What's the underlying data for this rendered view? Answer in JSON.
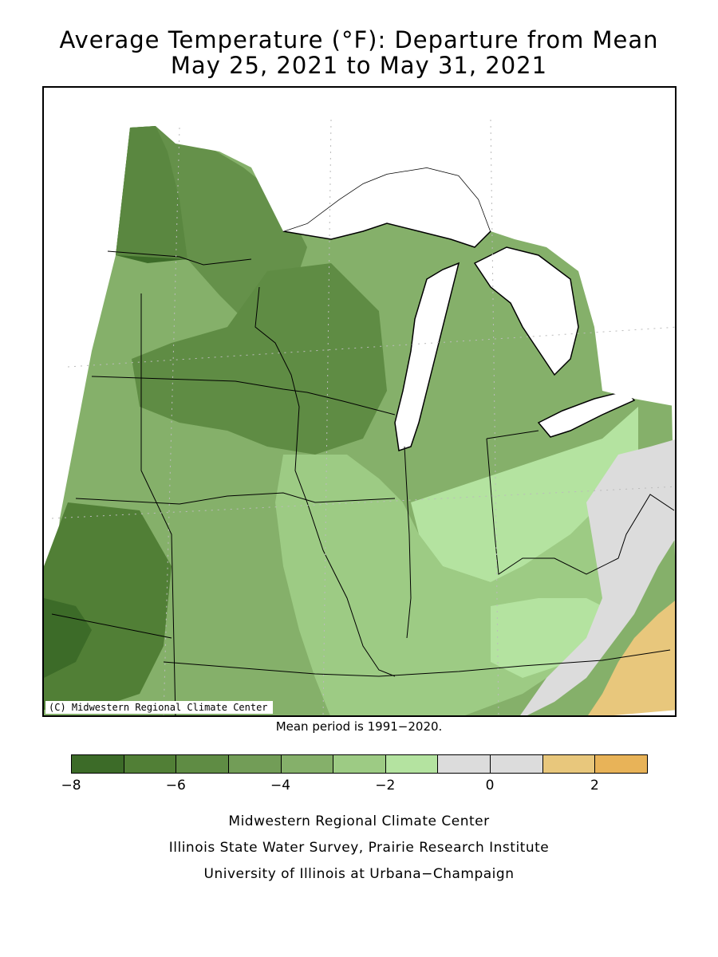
{
  "title": {
    "line1": "Average Temperature (°F): Departure from Mean",
    "line2": "May 25, 2021 to May 31, 2021"
  },
  "map": {
    "copyright": "(C) Midwestern Regional Climate Center",
    "mean_period": "Mean period is 1991−2020."
  },
  "legend": {
    "colors": [
      "#3c6b28",
      "#517f36",
      "#5f8c44",
      "#729d57",
      "#85b06a",
      "#9dcb84",
      "#b4e3a0",
      "#dcdcdc",
      "#dcdcdc",
      "#e8c77c",
      "#e8b358"
    ],
    "tick_labels": [
      "−8",
      "−6",
      "−4",
      "−2",
      "0",
      "2"
    ]
  },
  "credits": {
    "line1": "Midwestern Regional Climate Center",
    "line2": "Illinois State Water Survey, Prairie Research Institute",
    "line3": "University of Illinois at Urbana−Champaign"
  }
}
